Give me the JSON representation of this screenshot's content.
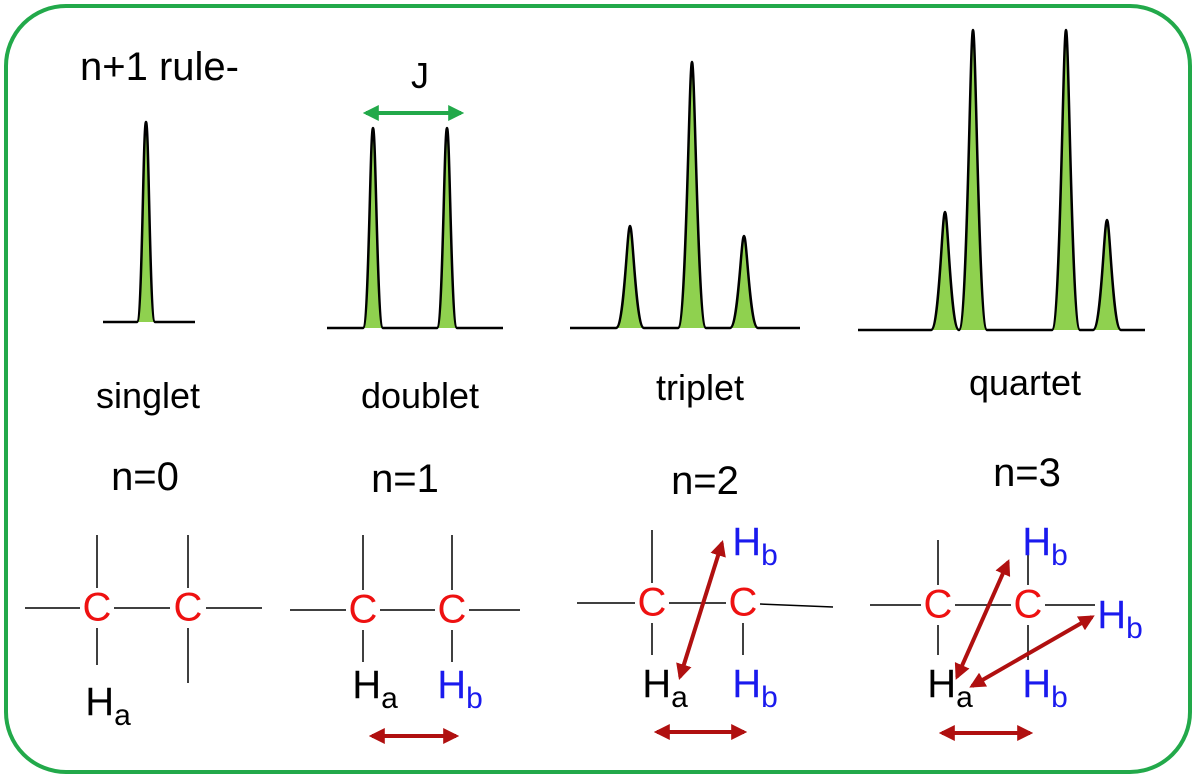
{
  "title": "n+1 rule-",
  "coupling_label": "J",
  "panels": [
    {
      "name": "singlet",
      "n_label": "n=0",
      "carbons": [
        "C",
        "C"
      ],
      "hydrogens": [
        {
          "symbol": "H",
          "sub": "a"
        }
      ]
    },
    {
      "name": "doublet",
      "n_label": "n=1",
      "carbons": [
        "C",
        "C"
      ],
      "hydrogens": [
        {
          "symbol": "H",
          "sub": "a"
        },
        {
          "symbol": "H",
          "sub": "b"
        }
      ]
    },
    {
      "name": "triplet",
      "n_label": "n=2",
      "carbons": [
        "C",
        "C"
      ],
      "hydrogens": [
        {
          "symbol": "H",
          "sub": "b"
        },
        {
          "symbol": "H",
          "sub": "a"
        },
        {
          "symbol": "H",
          "sub": "b"
        }
      ]
    },
    {
      "name": "quartet",
      "n_label": "n=3",
      "carbons": [
        "C",
        "C"
      ],
      "hydrogens": [
        {
          "symbol": "H",
          "sub": "b"
        },
        {
          "symbol": "H",
          "sub": "b"
        },
        {
          "symbol": "H",
          "sub": "a"
        },
        {
          "symbol": "H",
          "sub": "b"
        }
      ]
    }
  ]
}
